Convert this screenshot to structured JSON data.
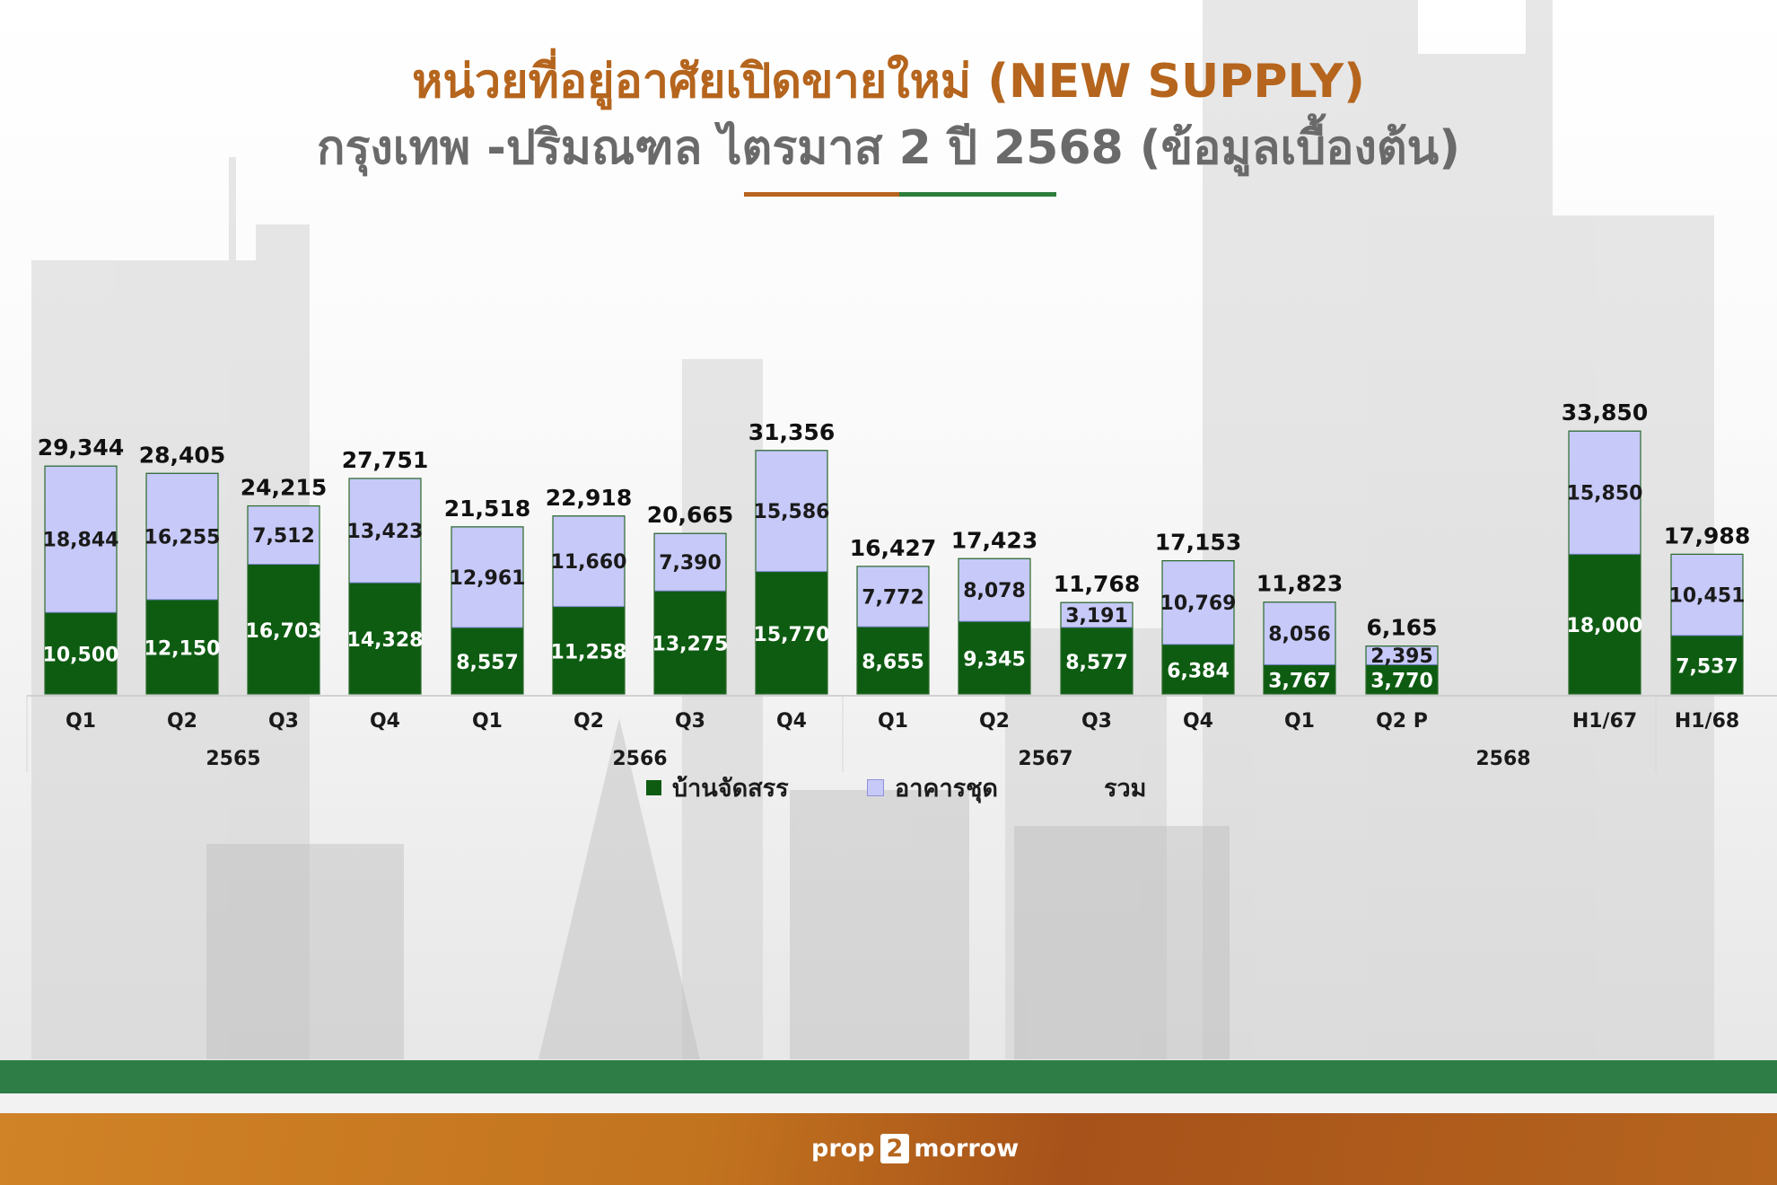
{
  "title_line1": "หน่วยที่อยู่อาศัยเปิดขายใหม่ (NEW SUPPLY)",
  "title_line2": "กรุงเทพ -ปริมณฑล ไตรมาส 2 ปี 2568 (ข้อมูลเบื้องต้น)",
  "logo": {
    "part1": "prop",
    "part2": "2",
    "part3": "morrow"
  },
  "colors": {
    "title": "#b5651d",
    "subtitle": "#6a6a6a",
    "housing": "#0e5c12",
    "condo": "#c7c9f8",
    "footer_green": "#2e7d47",
    "footer_orange": "#c2731e"
  },
  "chart_data": {
    "type": "bar",
    "stacked": true,
    "categories": [
      "Q1",
      "Q2",
      "Q3",
      "Q4",
      "Q1",
      "Q2",
      "Q3",
      "Q4",
      "Q1",
      "Q2",
      "Q3",
      "Q4",
      "Q1",
      "Q2 P",
      "H1/67",
      "H1/68"
    ],
    "groups": [
      {
        "label": "2565",
        "count": 4
      },
      {
        "label": "2566",
        "count": 4
      },
      {
        "label": "2567",
        "count": 4
      },
      {
        "label": "2568",
        "count": 2
      }
    ],
    "series": [
      {
        "name": "บ้านจัดสรร",
        "values": [
          10500,
          12150,
          16703,
          14328,
          8557,
          11258,
          13275,
          15770,
          8655,
          9345,
          8577,
          6384,
          3767,
          3770,
          18000,
          7537
        ]
      },
      {
        "name": "อาคารชุด",
        "values": [
          18844,
          16255,
          7512,
          13423,
          12961,
          11660,
          7390,
          15586,
          7772,
          8078,
          3191,
          10769,
          8056,
          2395,
          15850,
          10451
        ]
      }
    ],
    "totals": [
      29344,
      28405,
      24215,
      27751,
      21518,
      22918,
      20665,
      31356,
      16427,
      17423,
      11768,
      17153,
      11823,
      6165,
      33850,
      17988
    ],
    "total_label": "รวม",
    "legend": "bottom"
  }
}
